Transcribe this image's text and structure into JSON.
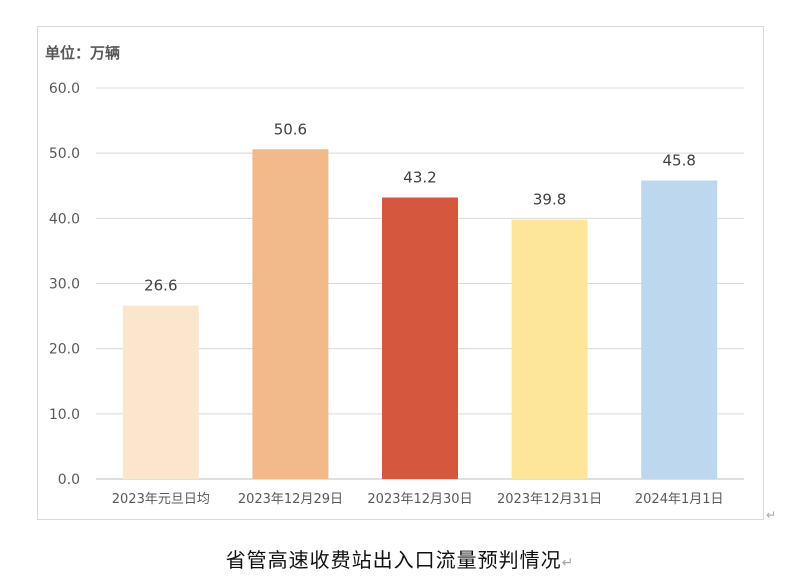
{
  "unit_label": "单位：万辆",
  "caption": "省管高速收费站出入口流量预判情况",
  "para_mark": "↵",
  "chart_data": {
    "type": "bar",
    "categories": [
      "2023年元旦日均",
      "2023年12月29日",
      "2023年12月30日",
      "2023年12月31日",
      "2024年1月1日"
    ],
    "values": [
      26.6,
      50.6,
      43.2,
      39.8,
      45.8
    ],
    "value_labels": [
      "26.6",
      "50.6",
      "43.2",
      "39.8",
      "45.8"
    ],
    "bar_colors": [
      "#fbe5cc",
      "#f2b98a",
      "#d4573e",
      "#fde599",
      "#bdd7ee"
    ],
    "yticks": [
      "0.0",
      "10.0",
      "20.0",
      "30.0",
      "40.0",
      "50.0",
      "60.0"
    ],
    "ylim": [
      0,
      60
    ],
    "grid": true,
    "legend": "none",
    "title": "",
    "xlabel": "",
    "ylabel": ""
  }
}
